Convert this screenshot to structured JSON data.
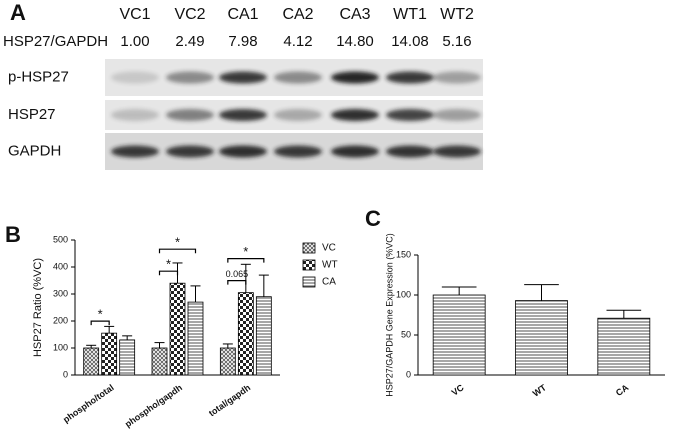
{
  "blot": {
    "panel": "A",
    "lanes": [
      "VC1",
      "VC2",
      "CA1",
      "CA2",
      "CA3",
      "WT1",
      "WT2"
    ],
    "ratio_label": "HSP27/GAPDH",
    "ratios": [
      "1.00",
      "2.49",
      "7.98",
      "4.12",
      "14.80",
      "14.08",
      "5.16"
    ],
    "rows": [
      "p-HSP27",
      "HSP27",
      "GAPDH"
    ]
  },
  "chart_data": [
    {
      "type": "bar",
      "panel": "B",
      "y_label": "HSP27 Ratio (%VC)",
      "categories": [
        "phospho/total",
        "phospho/gapdh",
        "total/gapdh"
      ],
      "series": [
        {
          "name": "VC",
          "values": [
            100,
            100,
            100
          ],
          "errors": [
            10,
            20,
            15
          ]
        },
        {
          "name": "WT",
          "values": [
            155,
            340,
            305
          ],
          "errors": [
            25,
            75,
            105
          ]
        },
        {
          "name": "CA",
          "values": [
            130,
            270,
            290
          ],
          "errors": [
            15,
            60,
            80
          ]
        }
      ],
      "ylim": [
        0,
        500
      ],
      "yticks": [
        0,
        100,
        200,
        300,
        400,
        500
      ],
      "annotations": [
        {
          "text": "*",
          "category": "phospho/total",
          "pair": [
            "VC",
            "WT"
          ]
        },
        {
          "text": "*",
          "category": "phospho/gapdh",
          "pair": [
            "VC",
            "WT"
          ]
        },
        {
          "text": "*",
          "category": "phospho/gapdh",
          "pair": [
            "VC",
            "CA"
          ]
        },
        {
          "text": "0.065",
          "category": "total/gapdh",
          "pair": [
            "VC",
            "WT"
          ]
        },
        {
          "text": "*",
          "category": "total/gapdh",
          "pair": [
            "VC",
            "CA"
          ]
        }
      ]
    },
    {
      "type": "bar",
      "panel": "C",
      "y_label": "HSP27/GAPDH Gene Expression (%VC)",
      "categories": [
        "VC",
        "WT",
        "CA"
      ],
      "values": [
        100,
        93,
        71
      ],
      "errors": [
        10,
        20,
        10
      ],
      "ylim": [
        0,
        150
      ],
      "yticks": [
        0,
        50,
        100,
        150
      ]
    }
  ]
}
